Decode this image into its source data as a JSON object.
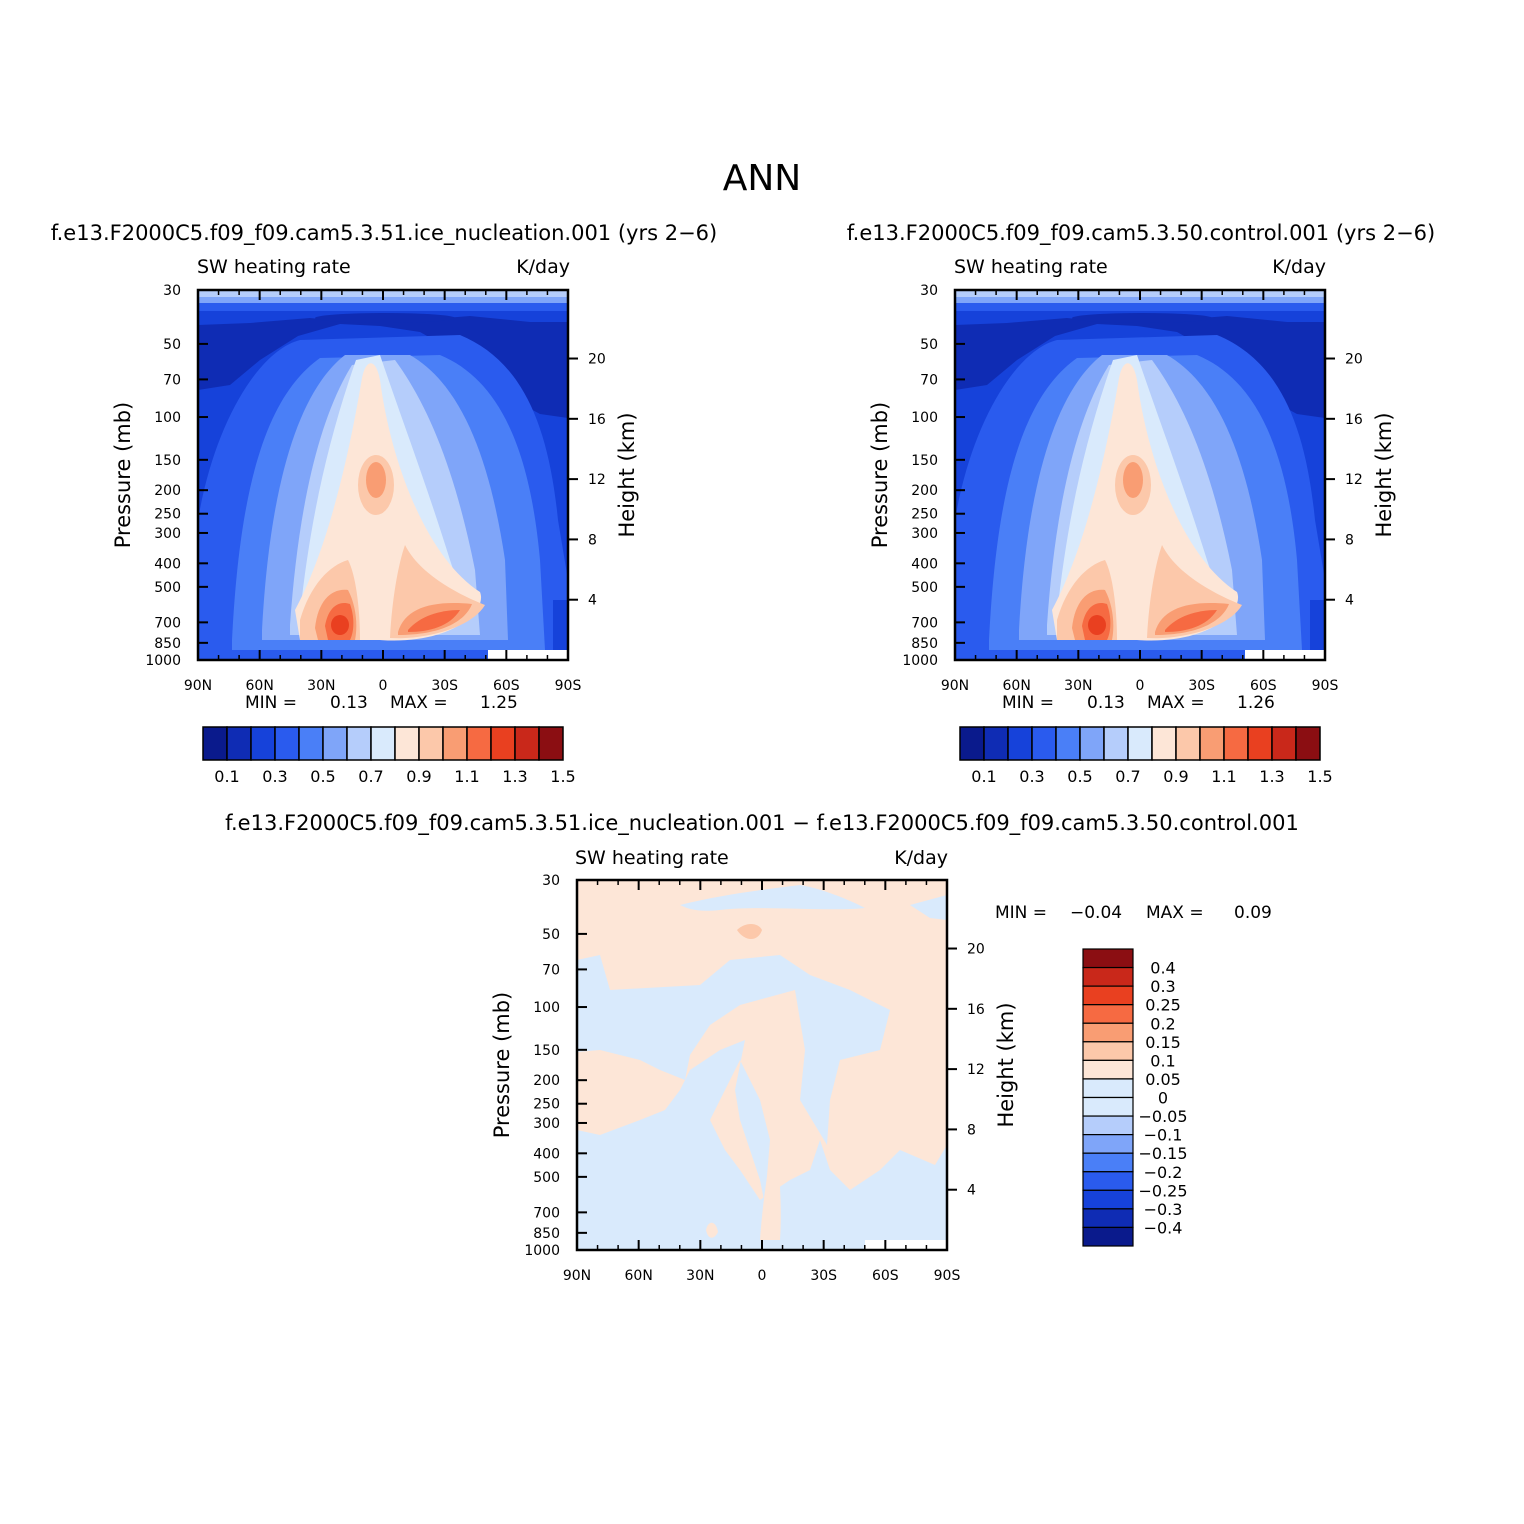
{
  "figure": {
    "title": "ANN"
  },
  "colors": {
    "cmap_main": [
      "#0a1a8c",
      "#0f2cb4",
      "#1642da",
      "#2a5bee",
      "#4a7ff7",
      "#7fa5f9",
      "#b5cdfb",
      "#d9eafc",
      "#fde6d7",
      "#fcc8aa",
      "#f99d73",
      "#f66a42",
      "#e94020",
      "#c9281a",
      "#8b0e12"
    ],
    "cmap_diff": [
      "#0a1a8c",
      "#0f2cb4",
      "#1642da",
      "#2a5bee",
      "#4a7ff7",
      "#7fa5f9",
      "#b5cdfb",
      "#d9eafc",
      "#fde6d7",
      "#fcc8aa",
      "#f99d73",
      "#f66a42",
      "#e94020",
      "#c9281a",
      "#8b0e12"
    ]
  },
  "panels": {
    "p1": {
      "title": "f.e13.F2000C5.f09_f09.cam5.3.51.ice_nucleation.001 (yrs 2−6)",
      "left_label": "SW heating rate",
      "right_label": "K/day",
      "min_label": "MIN =",
      "min_value": "0.13",
      "max_label": "MAX =",
      "max_value": "1.25"
    },
    "p2": {
      "title": "f.e13.F2000C5.f09_f09.cam5.3.50.control.001 (yrs 2−6)",
      "left_label": "SW heating rate",
      "right_label": "K/day",
      "min_label": "MIN =",
      "min_value": "0.13",
      "max_label": "MAX =",
      "max_value": "1.26"
    },
    "p3": {
      "title": "f.e13.F2000C5.f09_f09.cam5.3.51.ice_nucleation.001 − f.e13.F2000C5.f09_f09.cam5.3.50.control.001",
      "left_label": "SW heating rate",
      "right_label": "K/day",
      "min_label": "MIN =",
      "min_value": "−0.04",
      "max_label": "MAX =",
      "max_value": "0.09"
    }
  },
  "axes": {
    "ylabel": "Pressure (mb)",
    "ylabel_right": "Height (km)",
    "xticks": [
      "90N",
      "60N",
      "30N",
      "0",
      "30S",
      "60S",
      "90S"
    ],
    "yticks": [
      "30",
      "50",
      "70",
      "100",
      "150",
      "200",
      "250",
      "300",
      "400",
      "500",
      "700",
      "850",
      "1000"
    ],
    "yticks_right": [
      "20",
      "16",
      "12",
      "8",
      "4"
    ]
  },
  "colorbars": {
    "main_labels": [
      "0.1",
      "0.3",
      "0.5",
      "0.7",
      "0.9",
      "1.1",
      "1.3",
      "1.5"
    ],
    "diff_labels": [
      "0.4",
      "0.3",
      "0.25",
      "0.2",
      "0.15",
      "0.1",
      "0.05",
      "0",
      "−0.05",
      "−0.1",
      "−0.15",
      "−0.2",
      "−0.25",
      "−0.3",
      "−0.4"
    ]
  },
  "chart_data": [
    {
      "type": "heatmap",
      "title": "f.e13.F2000C5.f09_f09.cam5.3.51.ice_nucleation.001 (yrs 2−6)",
      "variable": "SW heating rate",
      "units": "K/day",
      "xlabel": "",
      "ylabel": "Pressure (mb)",
      "ylabel_right": "Height (km)",
      "x_ticks": [
        "90N",
        "60N",
        "30N",
        "0",
        "30S",
        "60S",
        "90S"
      ],
      "y_ticks": [
        30,
        50,
        70,
        100,
        150,
        200,
        250,
        300,
        400,
        500,
        700,
        850,
        1000
      ],
      "y_scale": "log",
      "y_reversed": true,
      "contour_levels": [
        0.1,
        0.2,
        0.3,
        0.4,
        0.5,
        0.6,
        0.7,
        0.8,
        0.9,
        1.0,
        1.1,
        1.2,
        1.3,
        1.4,
        1.5
      ],
      "min": 0.13,
      "max": 1.25
    },
    {
      "type": "heatmap",
      "title": "f.e13.F2000C5.f09_f09.cam5.3.50.control.001 (yrs 2−6)",
      "variable": "SW heating rate",
      "units": "K/day",
      "xlabel": "",
      "ylabel": "Pressure (mb)",
      "ylabel_right": "Height (km)",
      "x_ticks": [
        "90N",
        "60N",
        "30N",
        "0",
        "30S",
        "60S",
        "90S"
      ],
      "y_ticks": [
        30,
        50,
        70,
        100,
        150,
        200,
        250,
        300,
        400,
        500,
        700,
        850,
        1000
      ],
      "y_scale": "log",
      "y_reversed": true,
      "contour_levels": [
        0.1,
        0.2,
        0.3,
        0.4,
        0.5,
        0.6,
        0.7,
        0.8,
        0.9,
        1.0,
        1.1,
        1.2,
        1.3,
        1.4,
        1.5
      ],
      "min": 0.13,
      "max": 1.26
    },
    {
      "type": "heatmap",
      "title": "f.e13.F2000C5.f09_f09.cam5.3.51.ice_nucleation.001 − f.e13.F2000C5.f09_f09.cam5.3.50.control.001",
      "variable": "SW heating rate",
      "units": "K/day",
      "xlabel": "",
      "ylabel": "Pressure (mb)",
      "ylabel_right": "Height (km)",
      "x_ticks": [
        "90N",
        "60N",
        "30N",
        "0",
        "30S",
        "60S",
        "90S"
      ],
      "y_ticks": [
        30,
        50,
        70,
        100,
        150,
        200,
        250,
        300,
        400,
        500,
        700,
        850,
        1000
      ],
      "y_scale": "log",
      "y_reversed": true,
      "contour_levels": [
        -0.4,
        -0.3,
        -0.25,
        -0.2,
        -0.15,
        -0.1,
        -0.05,
        0,
        0.05,
        0.1,
        0.15,
        0.2,
        0.25,
        0.3,
        0.4
      ],
      "min": -0.04,
      "max": 0.09
    }
  ]
}
